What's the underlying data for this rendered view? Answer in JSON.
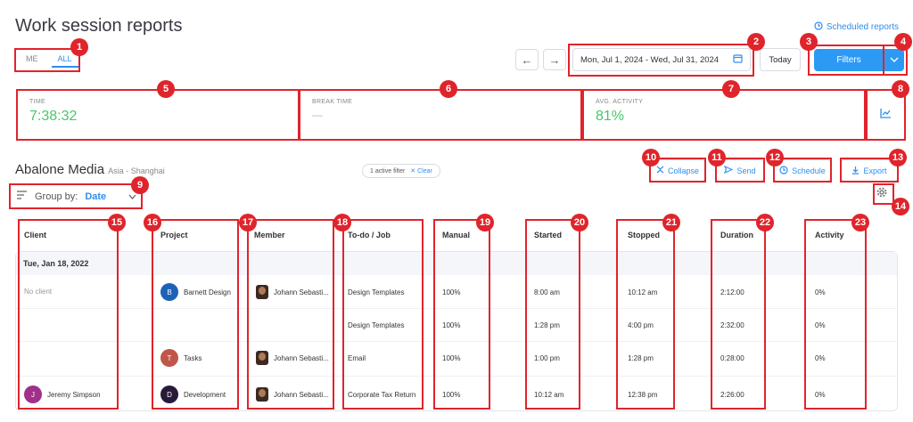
{
  "header": {
    "title": "Work session reports",
    "scheduled_reports": "Scheduled reports"
  },
  "toggle": {
    "me": "ME",
    "all": "ALL"
  },
  "date_nav": {
    "prev": "←",
    "next": "→",
    "range": "Mon, Jul 1, 2024 - Wed, Jul 31, 2024",
    "today": "Today"
  },
  "filters": {
    "label": "Filters",
    "caret": "⌄"
  },
  "stats": {
    "time": {
      "label": "TIME",
      "value": "7:38:32"
    },
    "break": {
      "label": "BREAK TIME",
      "value": "—"
    },
    "activity": {
      "label": "AVG. ACTIVITY",
      "value": "81%"
    }
  },
  "org": {
    "name": "Abalone Media",
    "timezone": "Asia - Shanghai",
    "active_filter": "1 active filter",
    "clear": "✕ Clear"
  },
  "actions": {
    "collapse": "Collapse",
    "send": "Send",
    "schedule": "Schedule",
    "export": "Export"
  },
  "groupby": {
    "label": "Group by:",
    "value": "Date"
  },
  "columns": [
    "Client",
    "Project",
    "Member",
    "To-do / Job",
    "Manual",
    "Started",
    "Stopped",
    "Duration",
    "Activity"
  ],
  "date_group": "Tue, Jan 18, 2022",
  "rows": [
    {
      "client": "No client",
      "project": "Barnett Design",
      "project_initial": "B",
      "member": "Johann Sebasti...",
      "todo": "Design Templates",
      "manual": "100%",
      "started": "8:00 am",
      "stopped": "10:12 am",
      "duration": "2:12:00",
      "activity": "0%"
    },
    {
      "client": "",
      "project": "",
      "project_initial": "",
      "member": "",
      "todo": "Design Templates",
      "manual": "100%",
      "started": "1:28 pm",
      "stopped": "4:00 pm",
      "duration": "2:32:00",
      "activity": "0%"
    },
    {
      "client": "",
      "project": "Tasks",
      "project_initial": "T",
      "member": "Johann Sebasti...",
      "todo": "Email",
      "manual": "100%",
      "started": "1:00 pm",
      "stopped": "1:28 pm",
      "duration": "0:28:00",
      "activity": "0%"
    },
    {
      "client": "Jeremy Simpson",
      "client_initial": "J",
      "project": "Development",
      "project_initial": "D",
      "member": "Johann Sebasti...",
      "todo": "Corporate Tax Return",
      "manual": "100%",
      "started": "10:12 am",
      "stopped": "12:38 pm",
      "duration": "2:26:00",
      "activity": "0%"
    }
  ],
  "colors": {
    "accent": "#2c9af5",
    "highlight": "#e0242b",
    "green": "#47c76a"
  },
  "callouts": [
    "1",
    "2",
    "3",
    "4",
    "5",
    "6",
    "7",
    "8",
    "9",
    "10",
    "11",
    "12",
    "13",
    "14",
    "15",
    "16",
    "17",
    "18",
    "19",
    "20",
    "21",
    "22",
    "23"
  ]
}
